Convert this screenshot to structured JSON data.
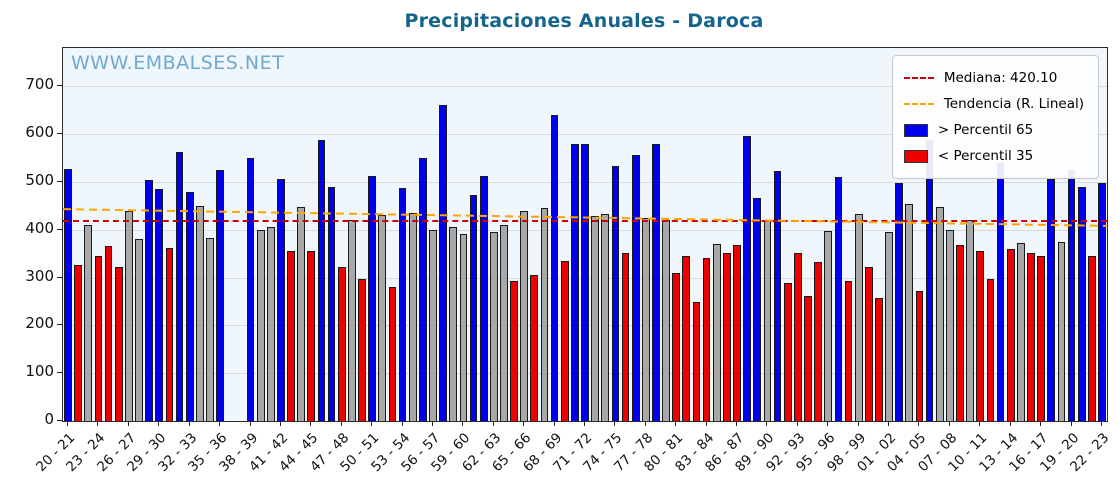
{
  "title": "Precipitaciones Anuales - Daroca",
  "watermark": "WWW.EMBALSES.NET",
  "legend": {
    "median_label": "Mediana: 420.10",
    "trend_label": "Tendencia (R. Lineal)",
    "p65_label": "> Percentil 65",
    "p35_label": "< Percentil 35"
  },
  "colors": {
    "title": "#15648e",
    "watermark": "#5b9bc8",
    "bar_p65": "#0000ee",
    "bar_p35": "#ee0000",
    "bar_mid": "#a8a8a8",
    "median_line": "#cc0000",
    "trend_line": "#ffa500",
    "plot_background": "#eff6fc",
    "gridline": "#d9d9d9"
  },
  "chart_data": {
    "type": "bar",
    "title": "Precipitaciones Anuales - Daroca",
    "xlabel": "",
    "ylabel": "",
    "ylim": [
      0,
      780
    ],
    "yticks": [
      0,
      100,
      200,
      300,
      400,
      500,
      600,
      700
    ],
    "grid": "horizontal",
    "legend_position": "top-right",
    "median": 420.1,
    "trend": {
      "y_start": 443,
      "y_end": 408
    },
    "x_tick_step": 3,
    "x_tick_labels": [
      "20 - 21",
      "23 - 24",
      "26 - 27",
      "29 - 30",
      "32 - 33",
      "35 - 36",
      "38 - 39",
      "41 - 42",
      "44 - 45",
      "47 - 48",
      "50 - 51",
      "53 - 54",
      "56 - 57",
      "59 - 60",
      "62 - 63",
      "65 - 66",
      "68 - 69",
      "71 - 72",
      "74 - 75",
      "77 - 78",
      "80 - 81",
      "83 - 84",
      "86 - 87",
      "89 - 90",
      "92 - 93",
      "95 - 96",
      "98 - 99",
      "01 - 02",
      "04 - 05",
      "07 - 08",
      "10 - 11",
      "13 - 14",
      "16 - 17",
      "19 - 20",
      "22 - 23"
    ],
    "series_note": "category p65 = > Percentil 65 (blue), p35 = < Percentil 35 (red), mid = between (gray), null = missing year",
    "bars": [
      [
        "20 - 21",
        527,
        "p65"
      ],
      [
        "21 - 22",
        327,
        "p35"
      ],
      [
        "22 - 23",
        410,
        "mid"
      ],
      [
        "23 - 24",
        345,
        "p35"
      ],
      [
        "24 - 25",
        367,
        "p35"
      ],
      [
        "25 - 26",
        322,
        "p35"
      ],
      [
        "26 - 27",
        440,
        "mid"
      ],
      [
        "27 - 28",
        380,
        "mid"
      ],
      [
        "28 - 29",
        505,
        "p65"
      ],
      [
        "29 - 30",
        485,
        "p65"
      ],
      [
        "30 - 31",
        362,
        "p35"
      ],
      [
        "31 - 32",
        563,
        "p65"
      ],
      [
        "32 - 33",
        478,
        "p65"
      ],
      [
        "33 - 34",
        450,
        "mid"
      ],
      [
        "34 - 35",
        382,
        "mid"
      ],
      [
        "35 - 36",
        525,
        "p65"
      ],
      [
        "36 - 37",
        null,
        null
      ],
      [
        "37 - 38",
        null,
        null
      ],
      [
        "38 - 39",
        550,
        "p65"
      ],
      [
        "39 - 40",
        400,
        "mid"
      ],
      [
        "40 - 41",
        405,
        "mid"
      ],
      [
        "41 - 42",
        507,
        "p65"
      ],
      [
        "42 - 43",
        355,
        "p35"
      ],
      [
        "43 - 44",
        447,
        "mid"
      ],
      [
        "44 - 45",
        355,
        "p35"
      ],
      [
        "45 - 46",
        587,
        "p65"
      ],
      [
        "46 - 47",
        490,
        "p65"
      ],
      [
        "47 - 48",
        322,
        "p35"
      ],
      [
        "48 - 49",
        420,
        "mid"
      ],
      [
        "49 - 50",
        297,
        "p35"
      ],
      [
        "50 - 51",
        512,
        "p65"
      ],
      [
        "51 - 52",
        430,
        "mid"
      ],
      [
        "52 - 53",
        280,
        "p35"
      ],
      [
        "53 - 54",
        488,
        "p65"
      ],
      [
        "54 - 55",
        435,
        "mid"
      ],
      [
        "55 - 56",
        550,
        "p65"
      ],
      [
        "56 - 57",
        400,
        "mid"
      ],
      [
        "57 - 58",
        660,
        "p65"
      ],
      [
        "58 - 59",
        405,
        "mid"
      ],
      [
        "59 - 60",
        392,
        "mid"
      ],
      [
        "60 - 61",
        473,
        "p65"
      ],
      [
        "61 - 62",
        512,
        "p65"
      ],
      [
        "62 - 63",
        395,
        "mid"
      ],
      [
        "63 - 64",
        410,
        "mid"
      ],
      [
        "64 - 65",
        292,
        "p35"
      ],
      [
        "65 - 66",
        440,
        "mid"
      ],
      [
        "66 - 67",
        305,
        "p35"
      ],
      [
        "67 - 68",
        445,
        "mid"
      ],
      [
        "68 - 69",
        640,
        "p65"
      ],
      [
        "69 - 70",
        335,
        "p35"
      ],
      [
        "70 - 71",
        580,
        "p65"
      ],
      [
        "71 - 72",
        580,
        "p65"
      ],
      [
        "72 - 73",
        428,
        "mid"
      ],
      [
        "73 - 74",
        432,
        "mid"
      ],
      [
        "74 - 75",
        533,
        "p65"
      ],
      [
        "75 - 76",
        352,
        "p35"
      ],
      [
        "76 - 77",
        556,
        "p65"
      ],
      [
        "77 - 78",
        425,
        "mid"
      ],
      [
        "78 - 79",
        580,
        "p65"
      ],
      [
        "79 - 80",
        420,
        "mid"
      ],
      [
        "80 - 81",
        310,
        "p35"
      ],
      [
        "81 - 82",
        345,
        "p35"
      ],
      [
        "82 - 83",
        248,
        "p35"
      ],
      [
        "83 - 84",
        340,
        "p35"
      ],
      [
        "84 - 85",
        370,
        "mid"
      ],
      [
        "85 - 86",
        352,
        "p35"
      ],
      [
        "86 - 87",
        368,
        "p35"
      ],
      [
        "87 - 88",
        595,
        "p65"
      ],
      [
        "88 - 89",
        467,
        "p65"
      ],
      [
        "89 - 90",
        420,
        "mid"
      ],
      [
        "90 - 91",
        522,
        "p65"
      ],
      [
        "91 - 92",
        288,
        "p35"
      ],
      [
        "92 - 93",
        352,
        "p35"
      ],
      [
        "93 - 94",
        262,
        "p35"
      ],
      [
        "94 - 95",
        333,
        "p35"
      ],
      [
        "95 - 96",
        398,
        "mid"
      ],
      [
        "96 - 97",
        510,
        "p65"
      ],
      [
        "97 - 98",
        292,
        "p35"
      ],
      [
        "98 - 99",
        432,
        "mid"
      ],
      [
        "99 - 00",
        322,
        "p35"
      ],
      [
        "00 - 01",
        258,
        "p35"
      ],
      [
        "01 - 02",
        395,
        "mid"
      ],
      [
        "02 - 03",
        498,
        "p65"
      ],
      [
        "03 - 04",
        453,
        "mid"
      ],
      [
        "04 - 05",
        272,
        "p35"
      ],
      [
        "05 - 06",
        588,
        "p65"
      ],
      [
        "06 - 07",
        448,
        "mid"
      ],
      [
        "07 - 08",
        400,
        "mid"
      ],
      [
        "08 - 09",
        368,
        "p35"
      ],
      [
        "09 - 10",
        420,
        "mid"
      ],
      [
        "10 - 11",
        355,
        "p35"
      ],
      [
        "11 - 12",
        297,
        "p35"
      ],
      [
        "12 - 13",
        540,
        "p65"
      ],
      [
        "13 - 14",
        360,
        "p35"
      ],
      [
        "14 - 15",
        372,
        "mid"
      ],
      [
        "15 - 16",
        352,
        "p35"
      ],
      [
        "16 - 17",
        345,
        "p35"
      ],
      [
        "17 - 18",
        507,
        "p65"
      ],
      [
        "18 - 19",
        375,
        "mid"
      ],
      [
        "19 - 20",
        525,
        "p65"
      ],
      [
        "20 - 21",
        490,
        "p65"
      ],
      [
        "21 - 22",
        345,
        "p35"
      ],
      [
        "22 - 23",
        498,
        "p65"
      ]
    ]
  }
}
